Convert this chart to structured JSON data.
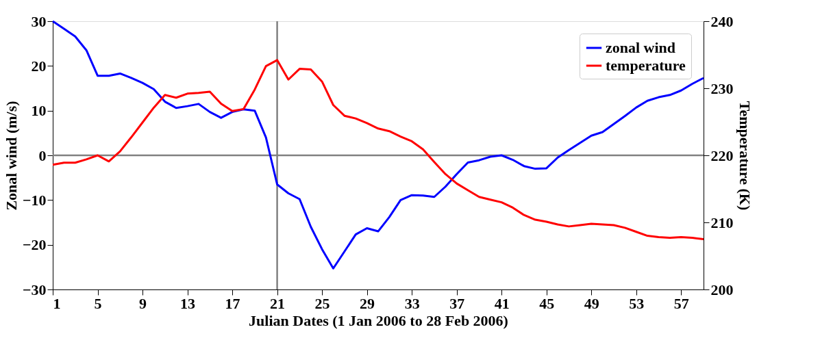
{
  "chart_data": {
    "type": "line",
    "xlabel": "Julian Dates (1 Jan 2006 to 28 Feb 2006)",
    "ylabel": "Zonal wind (m/s)",
    "y2label": "Temperature (K)",
    "x": [
      1,
      2,
      3,
      4,
      5,
      6,
      7,
      8,
      9,
      10,
      11,
      12,
      13,
      14,
      15,
      16,
      17,
      18,
      19,
      20,
      21,
      22,
      23,
      24,
      25,
      26,
      27,
      28,
      29,
      30,
      31,
      32,
      33,
      34,
      35,
      36,
      37,
      38,
      39,
      40,
      41,
      42,
      43,
      44,
      45,
      46,
      47,
      48,
      49,
      50,
      51,
      52,
      53,
      54,
      55,
      56,
      57,
      58,
      59
    ],
    "series": [
      {
        "name": "zonal wind",
        "color": "#0000ff",
        "values": [
          30,
          28.3,
          26.6,
          23.5,
          17.8,
          17.8,
          18.3,
          17.3,
          16.2,
          14.8,
          12,
          10.6,
          11,
          11.5,
          9.7,
          8.4,
          9.7,
          10.3,
          10,
          4,
          -6.5,
          -8.5,
          -9.8,
          -16,
          -21,
          -25.3,
          -21.5,
          -17.7,
          -16.3,
          -17,
          -13.8,
          -10,
          -8.9,
          -9,
          -9.3,
          -7,
          -4.2,
          -1.6,
          -1.1,
          -0.3,
          0,
          -1,
          -2.4,
          -3,
          -2.9,
          -0.5,
          1.2,
          2.8,
          4.4,
          5.2,
          7,
          8.8,
          10.7,
          12.2,
          13,
          13.5,
          14.5,
          16,
          17.3
        ]
      },
      {
        "name": "temperature",
        "color": "#ff0000",
        "axis": "y2",
        "values": [
          218.6,
          218.9,
          218.9,
          219.4,
          220,
          219.1,
          220.6,
          222.7,
          224.9,
          227.1,
          229,
          228.6,
          229.2,
          229.3,
          229.5,
          227.7,
          226.6,
          226.9,
          229.8,
          233.3,
          234.2,
          231.3,
          232.9,
          232.8,
          231,
          227.5,
          225.9,
          225.5,
          224.8,
          224,
          223.6,
          222.8,
          222.1,
          220.9,
          219,
          217.2,
          215.8,
          214.8,
          213.8,
          213.4,
          213,
          212.2,
          211.1,
          210.4,
          210.1,
          209.7,
          209.4,
          209.6,
          209.8,
          209.7,
          209.6,
          209.2,
          208.6,
          208,
          207.8,
          207.7,
          207.8,
          207.7,
          207.5
        ]
      }
    ],
    "xlim": [
      1,
      59
    ],
    "xticks": [
      1,
      5,
      9,
      13,
      17,
      21,
      25,
      29,
      33,
      37,
      41,
      45,
      49,
      53,
      57
    ],
    "ylim": [
      -30,
      30
    ],
    "yticks": [
      -30,
      -20,
      -10,
      0,
      10,
      20,
      30
    ],
    "y2lim": [
      200,
      240
    ],
    "y2ticks": [
      200,
      210,
      220,
      230,
      240
    ],
    "ref_lines": [
      {
        "axis": "y",
        "value": 0,
        "color": "#808080"
      },
      {
        "axis": "x",
        "value": 21,
        "color": "#808080"
      }
    ],
    "legend": "top right",
    "grid": false,
    "marker": "none",
    "line_style": "solid"
  }
}
